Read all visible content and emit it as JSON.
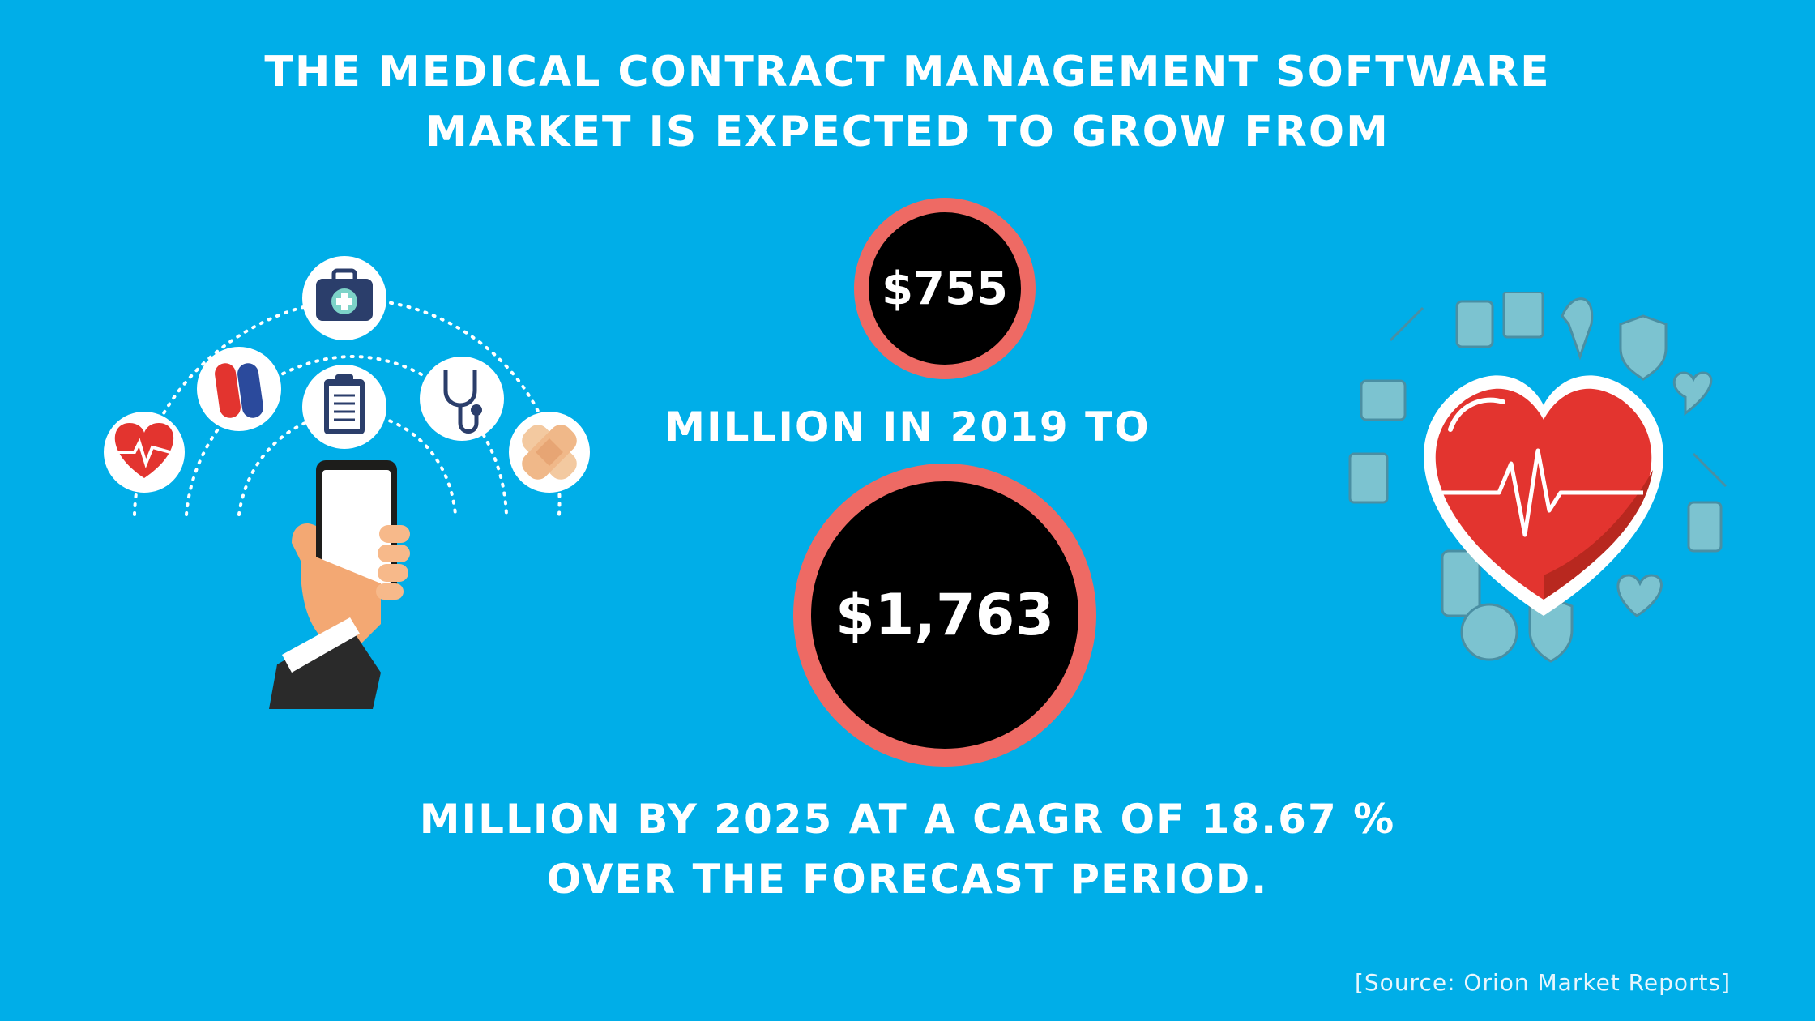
{
  "headline": {
    "line1": "THE MEDICAL CONTRACT MANAGEMENT SOFTWARE",
    "line2": "MARKET IS EXPECTED TO GROW FROM"
  },
  "start_value": "$755",
  "middle_text": "MILLION IN 2019 TO",
  "end_value": "$1,763",
  "closing": {
    "line1": "MILLION BY 2025 AT A CAGR OF 18.67 %",
    "line2": "OVER THE FORECAST PERIOD."
  },
  "source": "[Source: Orion Market Reports]",
  "colors": {
    "background": "#00aee8",
    "circle_fill": "#000000",
    "circle_ring": "#ee6a64",
    "text": "#ffffff"
  },
  "icons": {
    "left": [
      "heartbeat-icon",
      "pills-icon",
      "medical-kit-icon",
      "clipboard-icon",
      "stethoscope-icon",
      "bandage-icon",
      "smartphone-hand-icon"
    ],
    "right": [
      "heart-ekg-icon"
    ]
  }
}
